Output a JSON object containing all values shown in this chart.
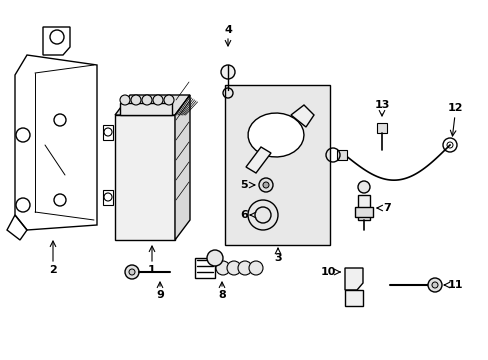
{
  "bg_color": "#ffffff",
  "line_color": "#000000",
  "label_color": "#000000",
  "figsize": [
    4.89,
    3.6
  ],
  "dpi": 100
}
